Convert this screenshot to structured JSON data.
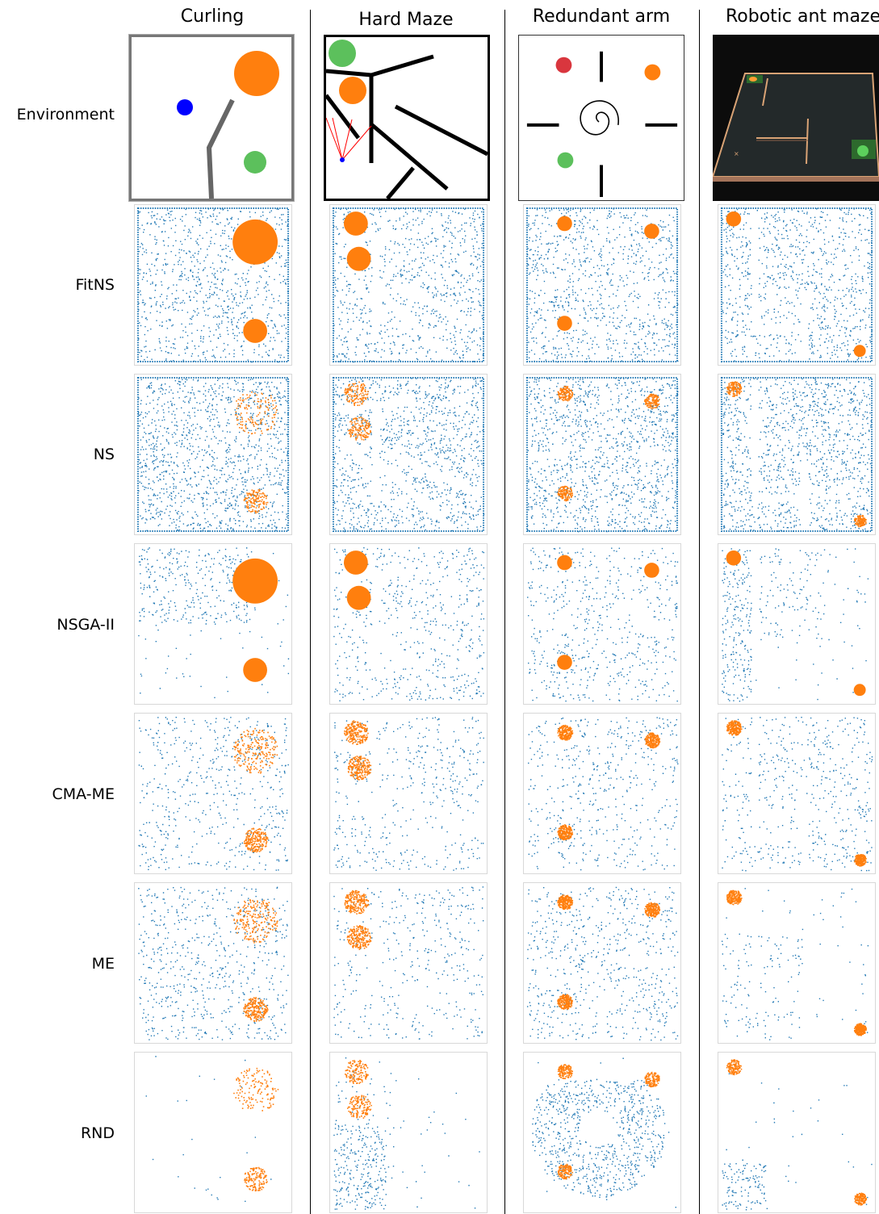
{
  "columns": [
    "Curling",
    "Hard Maze",
    "Redundant arm",
    "Robotic ant maze"
  ],
  "rows": [
    "Environment",
    "FitNS",
    "NS",
    "NSGA-II",
    "CMA-ME",
    "ME",
    "RND"
  ],
  "colors": {
    "point": "#1f77b4",
    "highlight": "#ff7f0e",
    "target": "#5cc05c",
    "robot": "#0000ff",
    "arm_target": "#d9363e",
    "wall": "#000000",
    "curling_wall": "#666666",
    "sensor": "#ff0000",
    "ant_bg": "#0c0c0c",
    "ant_floor": "#23292a",
    "ant_edge": "#d9a375"
  },
  "icons": {
    "curling": "curling-environment",
    "hard_maze": "hard-maze-environment",
    "redundant_arm": "redundant-arm-environment",
    "ant_maze": "robotic-ant-maze-environment"
  }
}
